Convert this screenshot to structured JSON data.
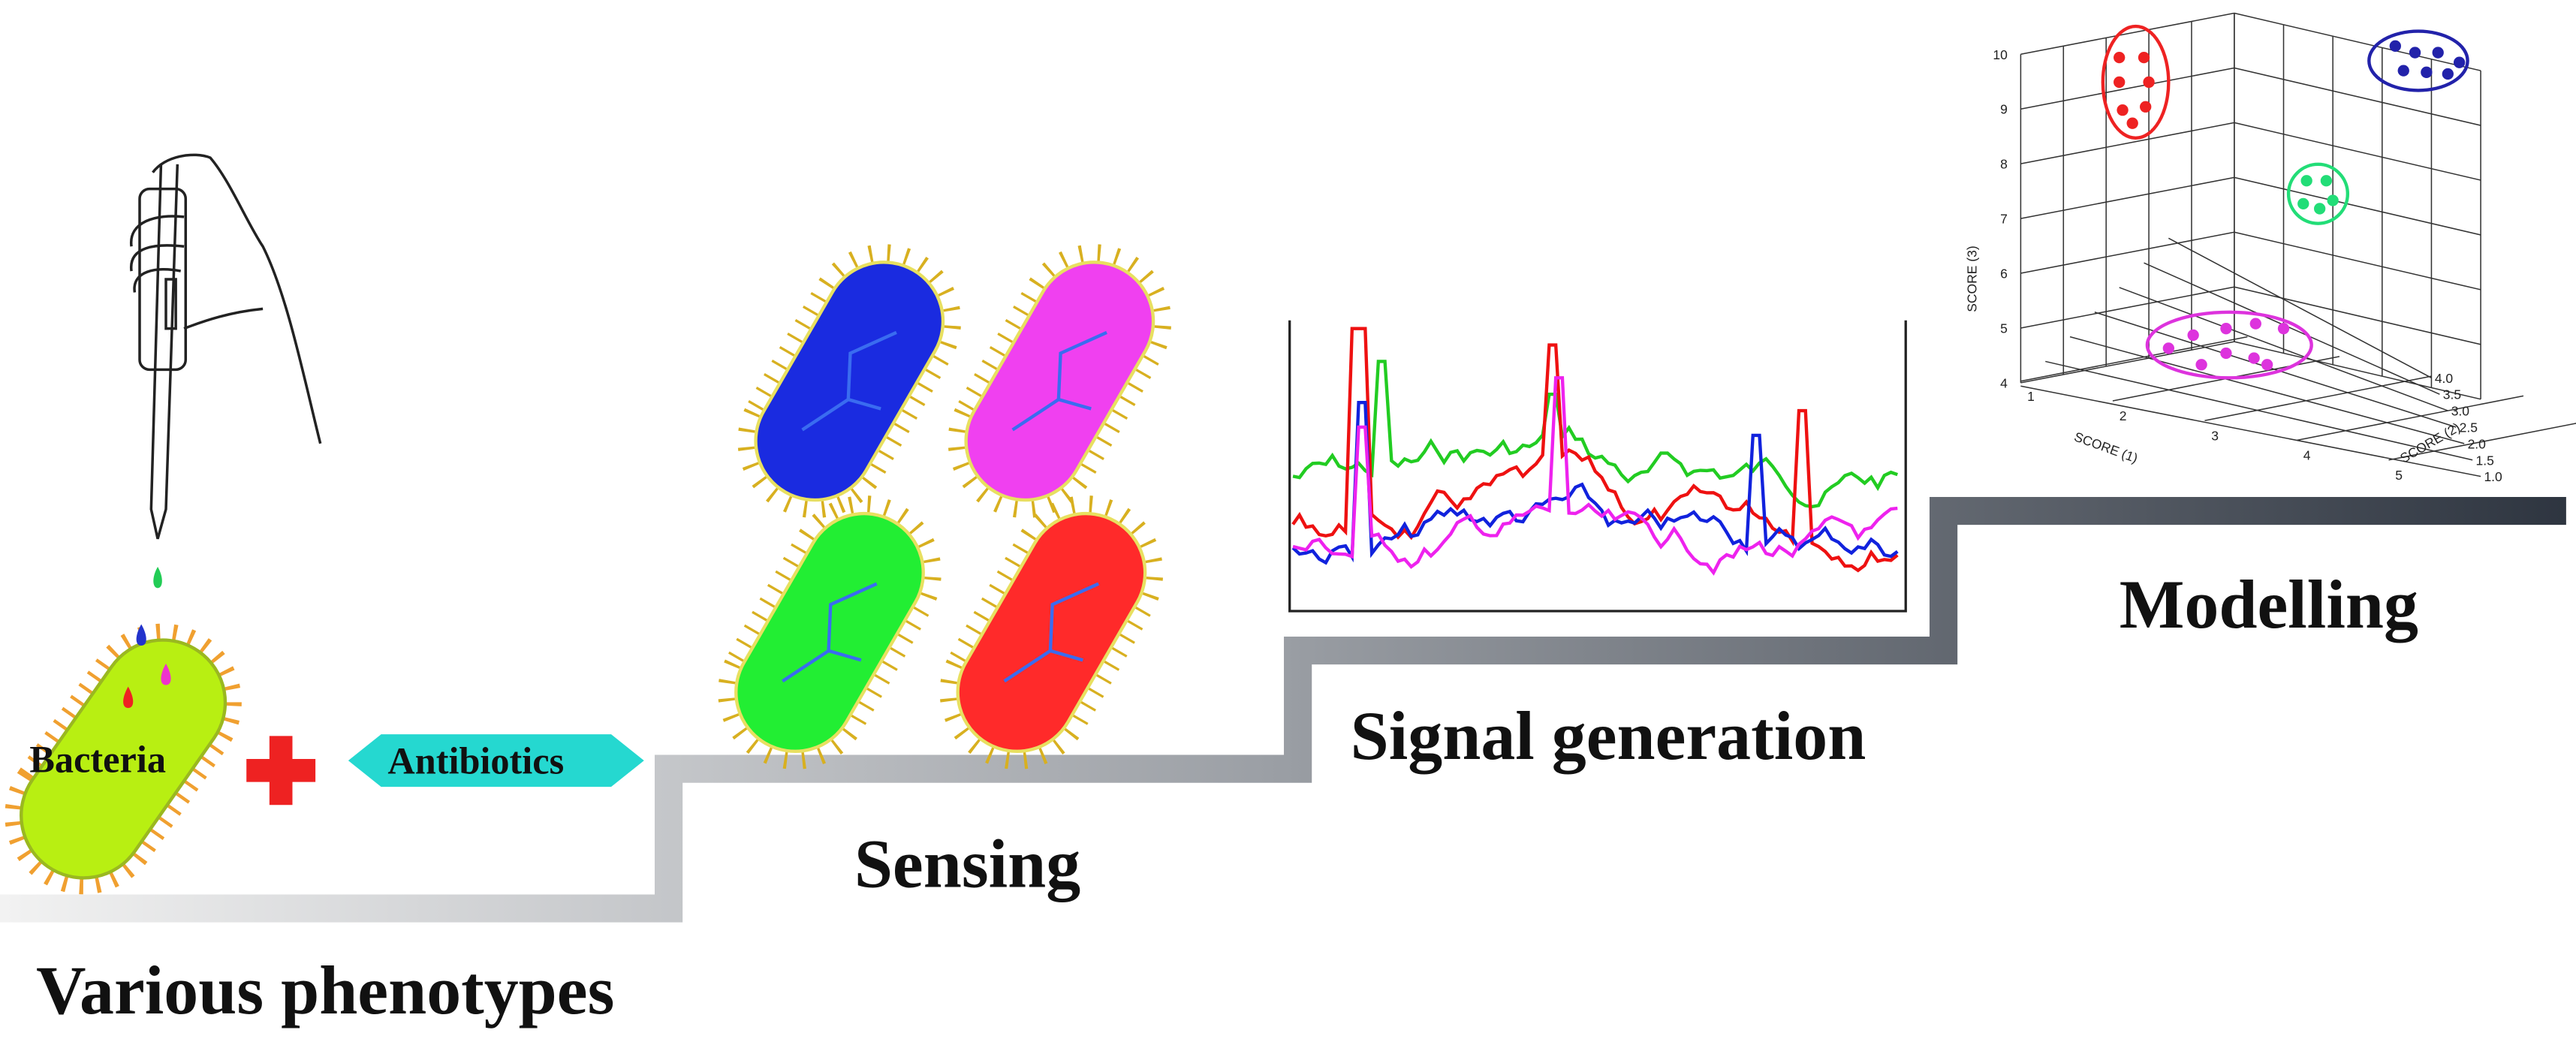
{
  "stages": [
    {
      "label": "Various phenotypes"
    },
    {
      "label": "Sensing"
    },
    {
      "label": "Signal generation"
    },
    {
      "label": "Modelling"
    }
  ],
  "inputs": {
    "bacteria": "Bacteria",
    "antibiotics": "Antibiotics"
  },
  "plot3d": {
    "z_label": "SCORE (3)",
    "x_label": "SCORE (1)",
    "y_label": "SCORE (2)",
    "z_ticks": [
      "4",
      "5",
      "6",
      "7",
      "8",
      "9",
      "10"
    ],
    "x_ticks": [
      "1",
      "2",
      "3",
      "4",
      "5"
    ],
    "y_ticks": [
      "1.0",
      "1.5",
      "2.0",
      "2.5",
      "3.0",
      "3.5",
      "4.0"
    ]
  }
}
